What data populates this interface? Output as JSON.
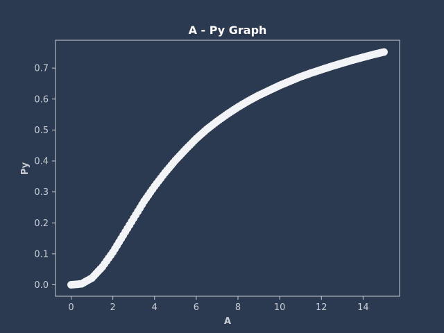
{
  "colors": {
    "background": "#2b3a50",
    "series": "#f3f4f7",
    "axis": "#c9ced6",
    "title": "#ffffff"
  },
  "chart_data": {
    "type": "scatter",
    "title": "A - Py Graph",
    "xlabel": "A",
    "ylabel": "Py",
    "xlim": [
      -0.75,
      15.75
    ],
    "ylim": [
      -0.037,
      0.79
    ],
    "xticks": [
      0,
      2,
      4,
      6,
      8,
      10,
      12,
      14
    ],
    "yticks": [
      0.0,
      0.1,
      0.2,
      0.3,
      0.4,
      0.5,
      0.6,
      0.7
    ],
    "xtick_labels": [
      "0",
      "2",
      "4",
      "6",
      "8",
      "10",
      "12",
      "14"
    ],
    "ytick_labels": [
      "0.0",
      "0.1",
      "0.2",
      "0.3",
      "0.4",
      "0.5",
      "0.6",
      "0.7"
    ],
    "grid": false,
    "legend": "none",
    "series": [
      {
        "color": "#f3f4f7",
        "x": [
          0,
          0.5,
          1,
          1.5,
          2,
          2.5,
          3,
          3.5,
          4,
          4.5,
          5,
          5.5,
          6,
          6.5,
          7,
          7.5,
          8,
          8.5,
          9,
          9.5,
          10,
          10.5,
          11,
          11.5,
          12,
          12.5,
          13,
          13.5,
          14,
          14.5,
          15
        ],
        "y": [
          0.0,
          0.003,
          0.022,
          0.058,
          0.105,
          0.16,
          0.215,
          0.27,
          0.318,
          0.362,
          0.402,
          0.438,
          0.472,
          0.502,
          0.528,
          0.552,
          0.574,
          0.594,
          0.612,
          0.628,
          0.644,
          0.658,
          0.672,
          0.684,
          0.695,
          0.706,
          0.716,
          0.726,
          0.735,
          0.744,
          0.752
        ]
      }
    ]
  }
}
